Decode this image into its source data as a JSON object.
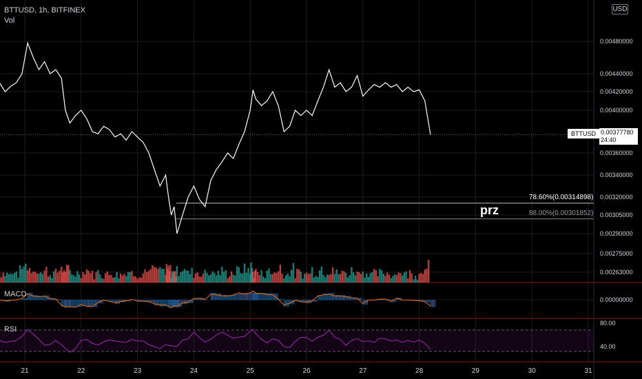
{
  "header": {
    "title": "BTTUSD, 1h, BITFINEX",
    "volume_label": "Vol",
    "currency": "USD"
  },
  "price_tag": {
    "symbol": "BTTUSD",
    "price": "0.00377780",
    "countdown": "24:40"
  },
  "annotation": {
    "text": "prz"
  },
  "fib_levels": [
    {
      "label": "78.60%(0.00314898)",
      "price": 0.00314898,
      "color": "#ffffff"
    },
    {
      "label": "88.00%(0.00301852)",
      "price": 0.00301852,
      "color": "#9598a1"
    }
  ],
  "macd": {
    "label": "MACD",
    "axis_label": "0.00000000"
  },
  "rsi": {
    "label": "RSI",
    "levels": [
      "80.00",
      "40.00"
    ]
  },
  "colors": {
    "background": "#000000",
    "price_line": "#ffffff",
    "volume_up": "#26a69a",
    "volume_down": "#ef5350",
    "macd_hist": "#2196f3",
    "macd_signal": "#ff6d00",
    "rsi_line": "#9c27b0",
    "grid": "#1c1c1c",
    "pane_border": "#8b1a1a"
  },
  "chart_data": {
    "type": "line",
    "title": "BTTUSD, 1h, BITFINEX",
    "x_ticks": [
      "21",
      "22",
      "23",
      "24",
      "25",
      "26",
      "27",
      "28",
      "29",
      "30",
      "31"
    ],
    "y_ticks": [
      "0.00263000",
      "0.00275000",
      "0.00290000",
      "0.00305000",
      "0.00320000",
      "0.00340000",
      "0.00360000",
      "0.00400000",
      "0.00420000",
      "0.00440000",
      "0.00480000"
    ],
    "x_range_days": [
      20.55,
      31
    ],
    "series": [
      {
        "points": [
          [
            20.55,
            0.0043
          ],
          [
            20.65,
            0.0042
          ],
          [
            20.75,
            0.00426
          ],
          [
            20.85,
            0.0043
          ],
          [
            20.95,
            0.0044
          ],
          [
            21.05,
            0.00478
          ],
          [
            21.15,
            0.0046
          ],
          [
            21.25,
            0.00445
          ],
          [
            21.35,
            0.00455
          ],
          [
            21.45,
            0.0044
          ],
          [
            21.55,
            0.00445
          ],
          [
            21.65,
            0.00435
          ],
          [
            21.72,
            0.004
          ],
          [
            21.8,
            0.00388
          ],
          [
            21.9,
            0.00395
          ],
          [
            22.0,
            0.004
          ],
          [
            22.1,
            0.00392
          ],
          [
            22.2,
            0.0038
          ],
          [
            22.3,
            0.00378
          ],
          [
            22.4,
            0.00385
          ],
          [
            22.5,
            0.00382
          ],
          [
            22.6,
            0.00375
          ],
          [
            22.7,
            0.00378
          ],
          [
            22.8,
            0.00372
          ],
          [
            22.9,
            0.0038
          ],
          [
            23.0,
            0.00375
          ],
          [
            23.1,
            0.0037
          ],
          [
            23.2,
            0.0036
          ],
          [
            23.3,
            0.00345
          ],
          [
            23.4,
            0.0033
          ],
          [
            23.5,
            0.0034
          ],
          [
            23.55,
            0.0032
          ],
          [
            23.6,
            0.00305
          ],
          [
            23.65,
            0.00312
          ],
          [
            23.7,
            0.0029
          ],
          [
            23.8,
            0.00305
          ],
          [
            23.9,
            0.0032
          ],
          [
            24.0,
            0.0033
          ],
          [
            24.1,
            0.00318
          ],
          [
            24.2,
            0.00312
          ],
          [
            24.3,
            0.00335
          ],
          [
            24.4,
            0.00345
          ],
          [
            24.5,
            0.00352
          ],
          [
            24.6,
            0.0036
          ],
          [
            24.7,
            0.00355
          ],
          [
            24.8,
            0.00368
          ],
          [
            24.9,
            0.0038
          ],
          [
            25.0,
            0.004
          ],
          [
            25.05,
            0.00422
          ],
          [
            25.1,
            0.00412
          ],
          [
            25.2,
            0.00405
          ],
          [
            25.3,
            0.0041
          ],
          [
            25.4,
            0.0042
          ],
          [
            25.5,
            0.00405
          ],
          [
            25.6,
            0.0038
          ],
          [
            25.7,
            0.00385
          ],
          [
            25.8,
            0.004
          ],
          [
            25.9,
            0.00395
          ],
          [
            26.0,
            0.004
          ],
          [
            26.1,
            0.00395
          ],
          [
            26.2,
            0.0041
          ],
          [
            26.3,
            0.00425
          ],
          [
            26.4,
            0.00445
          ],
          [
            26.5,
            0.00425
          ],
          [
            26.6,
            0.0043
          ],
          [
            26.7,
            0.0042
          ],
          [
            26.8,
            0.00425
          ],
          [
            26.9,
            0.00438
          ],
          [
            27.0,
            0.00415
          ],
          [
            27.1,
            0.00422
          ],
          [
            27.2,
            0.00428
          ],
          [
            27.3,
            0.00425
          ],
          [
            27.4,
            0.0043
          ],
          [
            27.5,
            0.00425
          ],
          [
            27.6,
            0.00428
          ],
          [
            27.7,
            0.0042
          ],
          [
            27.8,
            0.00425
          ],
          [
            27.9,
            0.0042
          ],
          [
            28.0,
            0.00422
          ],
          [
            28.1,
            0.0041
          ],
          [
            28.2,
            0.00377
          ]
        ]
      }
    ],
    "volume_color_order": [
      "up",
      "down"
    ],
    "grid": true
  }
}
